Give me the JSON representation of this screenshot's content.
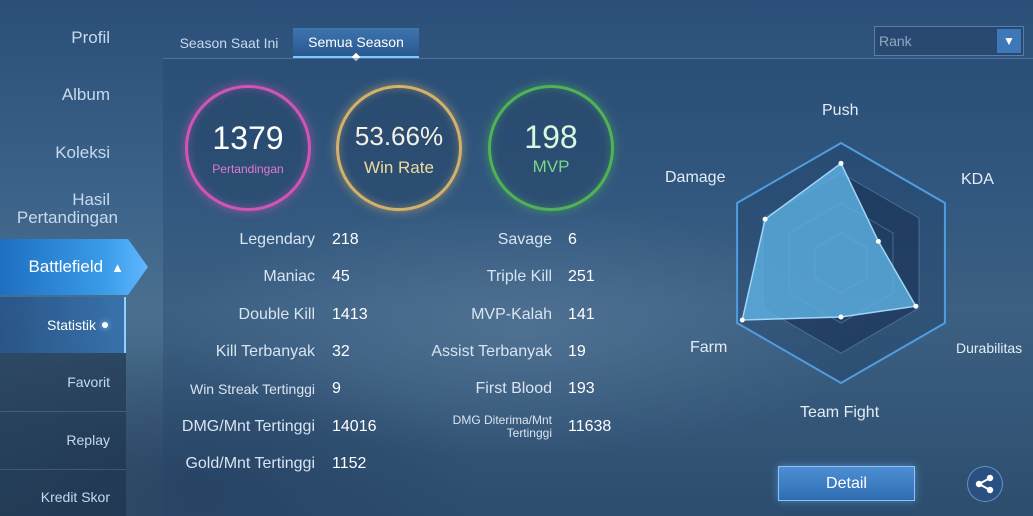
{
  "sidebar": {
    "items": [
      {
        "label": "Profil"
      },
      {
        "label": "Album"
      },
      {
        "label": "Koleksi"
      },
      {
        "label": "Hasil Pertandingan",
        "line1": "Hasil",
        "line2": "Pertandingan"
      }
    ],
    "active": {
      "label": "Battlefield"
    },
    "subitems": [
      {
        "label": "Statistik"
      },
      {
        "label": "Favorit"
      },
      {
        "label": "Replay"
      },
      {
        "label": "Kredit Skor"
      }
    ]
  },
  "tabs": [
    {
      "label": "Season Saat Ini"
    },
    {
      "label": "Semua Season"
    }
  ],
  "filter": {
    "selected": "Rank"
  },
  "summary": {
    "matches": {
      "value": "1379",
      "label": "Pertandingan",
      "color": "#d154b6"
    },
    "winrate": {
      "value": "53.66%",
      "label": "Win Rate",
      "color": "#d4b16a"
    },
    "mvp": {
      "value": "198",
      "label": "MVP",
      "color": "#4fb356"
    }
  },
  "stats_left": [
    {
      "label": "Legendary",
      "value": "218"
    },
    {
      "label": "Maniac",
      "value": "45"
    },
    {
      "label": "Double Kill",
      "value": "1413"
    },
    {
      "label": "Kill Terbanyak",
      "value": "32"
    },
    {
      "label": "Win Streak Tertinggi",
      "value": "9"
    },
    {
      "label": "DMG/Mnt Tertinggi",
      "value": "14016"
    },
    {
      "label": "Gold/Mnt Tertinggi",
      "value": "1152"
    }
  ],
  "stats_right": [
    {
      "label": "Savage",
      "value": "6"
    },
    {
      "label": "Triple Kill",
      "value": "251"
    },
    {
      "label": "MVP-Kalah",
      "value": "141"
    },
    {
      "label": "Assist Terbanyak",
      "value": "19"
    },
    {
      "label": "First Blood",
      "value": "193"
    },
    {
      "label": "DMG Diterima/Mnt Tertinggi",
      "line1": "DMG Diterima/Mnt",
      "line2": "Tertinggi",
      "value": "11638"
    }
  ],
  "radar": {
    "axes": [
      "Push",
      "KDA",
      "Durabilitas",
      "Team Fight",
      "Farm",
      "Damage"
    ],
    "values": [
      0.83,
      0.36,
      0.72,
      0.45,
      0.95,
      0.73
    ],
    "fill_color": "#5fb4e6"
  },
  "actions": {
    "detail_label": "Detail",
    "share_icon": "share-icon"
  }
}
